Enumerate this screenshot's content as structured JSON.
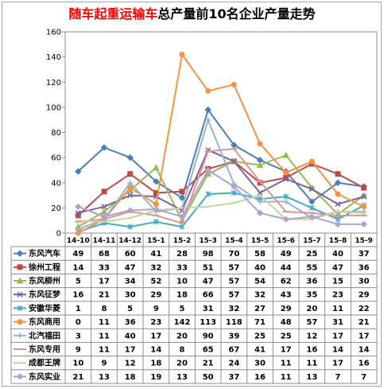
{
  "chart_data": {
    "type": "line",
    "title": [
      {
        "text": "随车起重运输车",
        "color": "#FF0000"
      },
      {
        "text": "总产量前10名企业产量走势",
        "color": "#000000"
      }
    ],
    "categories": [
      "14-10",
      "14-11",
      "14-12",
      "15-1",
      "15-2",
      "15-3",
      "15-4",
      "15-5",
      "15-6",
      "15-7",
      "15-8",
      "15-9"
    ],
    "ylim": [
      0,
      160
    ],
    "yticks": [
      0,
      20,
      40,
      60,
      80,
      100,
      120,
      140,
      160
    ],
    "grid": false,
    "legend": "data-table",
    "series": [
      {
        "name": "东风汽车",
        "values": [
          49,
          68,
          60,
          41,
          28,
          98,
          70,
          58,
          49,
          25,
          40,
          37
        ],
        "color": "#4A7EBB",
        "marker": "diamond"
      },
      {
        "name": "徐州工程",
        "values": [
          14,
          33,
          47,
          32,
          33,
          51,
          57,
          40,
          44,
          55,
          47,
          36
        ],
        "color": "#BE4B48",
        "marker": "square"
      },
      {
        "name": "东风柳州",
        "values": [
          5,
          17,
          34,
          52,
          10,
          47,
          57,
          54,
          62,
          36,
          15,
          30
        ],
        "color": "#98B954",
        "marker": "triangle"
      },
      {
        "name": "东风征梦",
        "values": [
          16,
          21,
          30,
          29,
          18,
          66,
          57,
          32,
          43,
          35,
          23,
          29
        ],
        "color": "#7D60A0",
        "marker": "x"
      },
      {
        "name": "安徽华菱",
        "values": [
          1,
          8,
          5,
          9,
          5,
          31,
          32,
          27,
          29,
          20,
          11,
          22
        ],
        "color": "#46AAC5",
        "marker": "star"
      },
      {
        "name": "东风商用",
        "values": [
          0,
          11,
          36,
          23,
          142,
          113,
          118,
          71,
          48,
          57,
          31,
          21
        ],
        "color": "#F69240",
        "marker": "circle"
      },
      {
        "name": "北汽福田",
        "values": [
          3,
          11,
          40,
          17,
          20,
          90,
          39,
          25,
          25,
          12,
          17,
          17
        ],
        "color": "#95B3D7",
        "marker": "plus"
      },
      {
        "name": "东风专用",
        "values": [
          9,
          11,
          17,
          14,
          8,
          65,
          67,
          41,
          17,
          16,
          14,
          14
        ],
        "color": "#D99694",
        "marker": "dash"
      },
      {
        "name": "成都王牌",
        "values": [
          10,
          9,
          12,
          18,
          20,
          21,
          24,
          30,
          11,
          11,
          17,
          16
        ],
        "color": "#C3D69B",
        "marker": "short-dash"
      },
      {
        "name": "东风实业",
        "values": [
          21,
          13,
          18,
          19,
          13,
          50,
          37,
          16,
          11,
          13,
          7,
          7
        ],
        "color": "#B3A2C7",
        "marker": "diamond"
      }
    ]
  }
}
